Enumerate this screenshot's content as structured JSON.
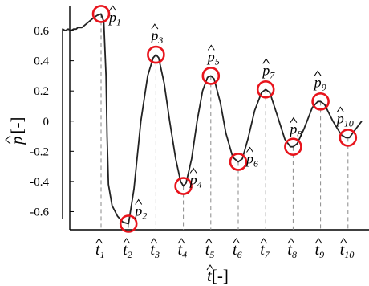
{
  "chart_data": {
    "type": "line",
    "xlabel": {
      "symbol": "t",
      "unit": "[-]"
    },
    "ylabel": {
      "symbol": "p",
      "unit": "[-]"
    },
    "y_ticks": [
      "0.6",
      "0.4",
      "0.2",
      "0",
      "-0.2",
      "-0.4",
      "-0.6"
    ],
    "y_tick_values": [
      0.6,
      0.4,
      0.2,
      0,
      -0.2,
      -0.4,
      -0.6
    ],
    "ylim": [
      -0.72,
      0.76
    ],
    "x_ticks": [
      {
        "symbol": "t",
        "sub": "1"
      },
      {
        "symbol": "t",
        "sub": "2"
      },
      {
        "symbol": "t",
        "sub": "3"
      },
      {
        "symbol": "t",
        "sub": "4"
      },
      {
        "symbol": "t",
        "sub": "5"
      },
      {
        "symbol": "t",
        "sub": "6"
      },
      {
        "symbol": "t",
        "sub": "7"
      },
      {
        "symbol": "t",
        "sub": "8"
      },
      {
        "symbol": "t",
        "sub": "9"
      },
      {
        "symbol": "t",
        "sub": "10"
      }
    ],
    "peaks": [
      {
        "symbol": "p",
        "sub": "1",
        "x": 1,
        "y": 0.71
      },
      {
        "symbol": "p",
        "sub": "2",
        "x": 2,
        "y": -0.68
      },
      {
        "symbol": "p",
        "sub": "3",
        "x": 3,
        "y": 0.44
      },
      {
        "symbol": "p",
        "sub": "4",
        "x": 4,
        "y": -0.43
      },
      {
        "symbol": "p",
        "sub": "5",
        "x": 5,
        "y": 0.3
      },
      {
        "symbol": "p",
        "sub": "6",
        "x": 6,
        "y": -0.27
      },
      {
        "symbol": "p",
        "sub": "7",
        "x": 7,
        "y": 0.21
      },
      {
        "symbol": "p",
        "sub": "8",
        "x": 8,
        "y": -0.17
      },
      {
        "symbol": "p",
        "sub": "9",
        "x": 9,
        "y": 0.13
      },
      {
        "symbol": "p",
        "sub": "10",
        "x": 10,
        "y": -0.11
      }
    ],
    "series": [
      {
        "points": [
          [
            -0.4,
            -0.65
          ],
          [
            -0.4,
            0.61
          ],
          [
            -0.3,
            0.6
          ],
          [
            -0.2,
            0.61
          ],
          [
            -0.1,
            0.6
          ],
          [
            0.0,
            0.61
          ],
          [
            0.1,
            0.61
          ],
          [
            0.15,
            0.62
          ],
          [
            0.3,
            0.62
          ],
          [
            0.5,
            0.65
          ],
          [
            0.7,
            0.68
          ],
          [
            0.85,
            0.7
          ],
          [
            1.0,
            0.71
          ],
          [
            1.1,
            0.66
          ],
          [
            1.18,
            0.3
          ],
          [
            1.22,
            -0.1
          ],
          [
            1.27,
            -0.42
          ],
          [
            1.4,
            -0.56
          ],
          [
            1.6,
            -0.63
          ],
          [
            1.8,
            -0.67
          ],
          [
            2.0,
            -0.68
          ],
          [
            2.2,
            -0.45
          ],
          [
            2.45,
            0.0
          ],
          [
            2.7,
            0.3
          ],
          [
            2.9,
            0.42
          ],
          [
            3.0,
            0.44
          ],
          [
            3.1,
            0.42
          ],
          [
            3.3,
            0.25
          ],
          [
            3.5,
            0.0
          ],
          [
            3.72,
            -0.25
          ],
          [
            3.9,
            -0.4
          ],
          [
            4.0,
            -0.43
          ],
          [
            4.1,
            -0.41
          ],
          [
            4.3,
            -0.25
          ],
          [
            4.5,
            0.0
          ],
          [
            4.7,
            0.2
          ],
          [
            4.88,
            0.29
          ],
          [
            5.0,
            0.3
          ],
          [
            5.12,
            0.28
          ],
          [
            5.35,
            0.12
          ],
          [
            5.55,
            -0.08
          ],
          [
            5.8,
            -0.24
          ],
          [
            6.0,
            -0.27
          ],
          [
            6.15,
            -0.25
          ],
          [
            6.35,
            -0.12
          ],
          [
            6.6,
            0.07
          ],
          [
            6.85,
            0.19
          ],
          [
            7.0,
            0.21
          ],
          [
            7.15,
            0.19
          ],
          [
            7.4,
            0.05
          ],
          [
            7.7,
            -0.12
          ],
          [
            7.9,
            -0.17
          ],
          [
            8.0,
            -0.17
          ],
          [
            8.15,
            -0.15
          ],
          [
            8.4,
            -0.05
          ],
          [
            8.7,
            0.09
          ],
          [
            8.9,
            0.13
          ],
          [
            9.0,
            0.13
          ],
          [
            9.15,
            0.11
          ],
          [
            9.45,
            0.0
          ],
          [
            9.75,
            -0.09
          ],
          [
            9.92,
            -0.11
          ],
          [
            10.05,
            -0.11
          ],
          [
            10.25,
            -0.06
          ],
          [
            10.5,
            0.0
          ]
        ]
      }
    ],
    "colors": {
      "line": "#222222",
      "marker": "#e8141c",
      "dropline": "#8a8a8a"
    },
    "grid": false
  }
}
